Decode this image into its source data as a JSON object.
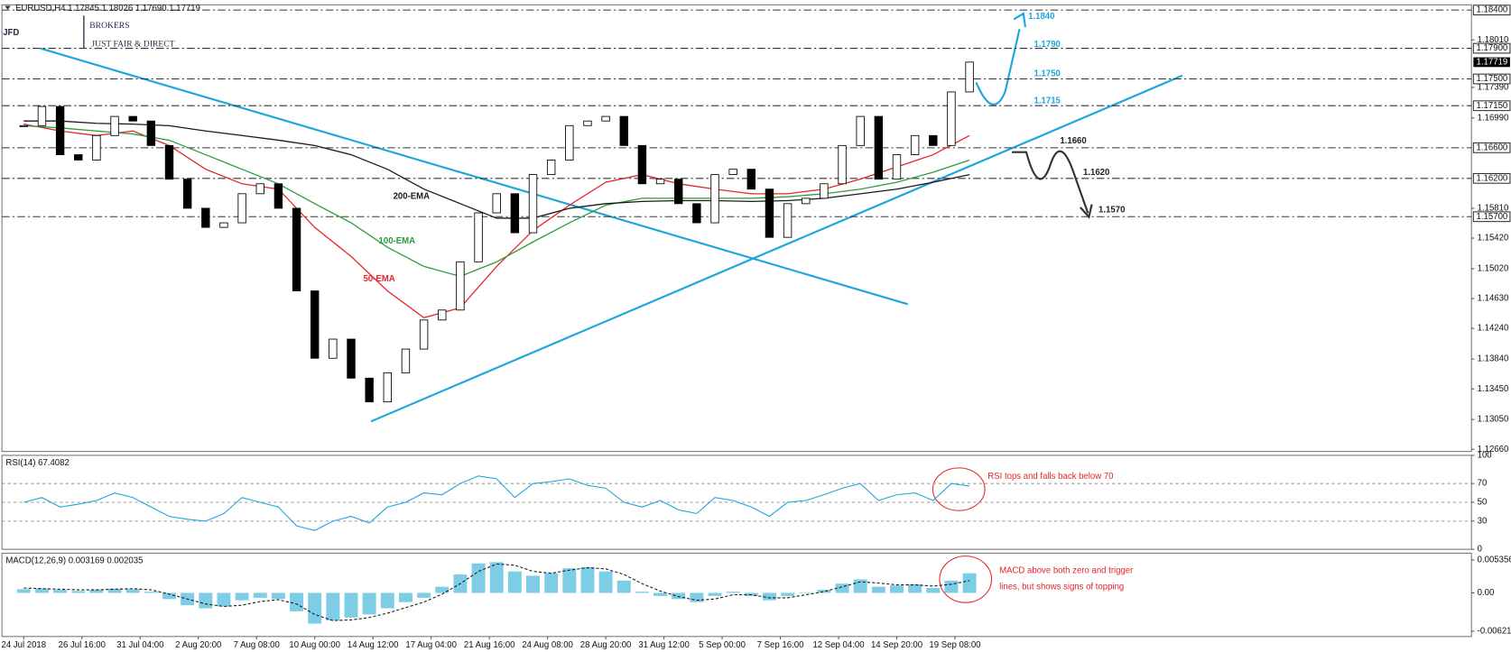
{
  "header": "EURUSD,H4 1.17845 1.18026 1.17690 1.17719",
  "logo": {
    "brand": "JFD",
    "name": "BROKERS",
    "tagline": "JUST FAIR & DIRECT"
  },
  "chart_data": [
    {
      "type": "candlestick",
      "color": "#000000",
      "x": [
        0,
        5,
        10,
        15,
        20,
        25,
        30,
        35,
        40,
        45,
        50,
        55,
        60,
        65,
        70,
        75,
        80,
        85,
        90,
        95,
        100,
        105,
        110,
        115,
        120,
        125,
        130,
        135,
        140,
        145,
        150,
        155,
        160,
        165,
        170,
        175,
        180,
        185,
        190,
        195,
        200,
        205,
        210,
        215,
        220,
        225,
        230,
        235,
        240,
        245,
        250,
        255,
        260
      ],
      "values": [
        1.1689,
        1.1714,
        1.1651,
        1.1644,
        1.1676,
        1.1701,
        1.1695,
        1.1663,
        1.1619,
        1.1581,
        1.1556,
        1.1562,
        1.16,
        1.1613,
        1.1581,
        1.1473,
        1.1385,
        1.141,
        1.1359,
        1.1328,
        1.1366,
        1.1397,
        1.1435,
        1.1448,
        1.1511,
        1.1575,
        1.16,
        1.1549,
        1.1625,
        1.1644,
        1.1689,
        1.1695,
        1.1701,
        1.1663,
        1.1613,
        1.1619,
        1.1587,
        1.1562,
        1.1625,
        1.1632,
        1.1606,
        1.1543,
        1.1587,
        1.1594,
        1.1613,
        1.1663,
        1.1701,
        1.1619,
        1.1651,
        1.1676,
        1.1663,
        1.1733,
        1.1772
      ],
      "series": [
        {
          "name": "50-EMA",
          "color": "#e3262b",
          "x": [
            0,
            10,
            20,
            30,
            40,
            50,
            60,
            70,
            80,
            90,
            100,
            110,
            120,
            130,
            140,
            150,
            160,
            170,
            180,
            190,
            200,
            210,
            220,
            230,
            240,
            250,
            260
          ],
          "values": [
            1.1691,
            1.1682,
            1.1676,
            1.1682,
            1.1663,
            1.1632,
            1.1613,
            1.1606,
            1.1556,
            1.1518,
            1.1473,
            1.1438,
            1.1451,
            1.1505,
            1.1552,
            1.1585,
            1.1615,
            1.1625,
            1.1613,
            1.1606,
            1.16,
            1.16,
            1.1606,
            1.1619,
            1.1635,
            1.1651,
            1.1676
          ]
        },
        {
          "name": "100-EMA",
          "color": "#2e9a3a",
          "x": [
            0,
            10,
            20,
            30,
            40,
            50,
            60,
            70,
            80,
            90,
            100,
            110,
            120,
            130,
            140,
            150,
            160,
            170,
            180,
            190,
            200,
            210,
            220,
            230,
            240,
            250,
            260
          ],
          "values": [
            1.1689,
            1.1686,
            1.1682,
            1.1678,
            1.167,
            1.1651,
            1.1632,
            1.1613,
            1.1587,
            1.1562,
            1.153,
            1.1505,
            1.1492,
            1.1511,
            1.1537,
            1.1562,
            1.1585,
            1.1594,
            1.1594,
            1.1594,
            1.1594,
            1.1596,
            1.16,
            1.1606,
            1.1615,
            1.1628,
            1.1644
          ]
        },
        {
          "name": "200-EMA",
          "color": "#1a1a1a",
          "x": [
            0,
            10,
            20,
            30,
            40,
            50,
            60,
            70,
            80,
            90,
            100,
            110,
            120,
            130,
            140,
            150,
            160,
            170,
            180,
            190,
            200,
            210,
            220,
            230,
            240,
            250,
            260
          ],
          "values": [
            1.1695,
            1.1695,
            1.1692,
            1.1691,
            1.1689,
            1.1682,
            1.1676,
            1.167,
            1.1663,
            1.1651,
            1.1632,
            1.1606,
            1.1587,
            1.1568,
            1.1568,
            1.1581,
            1.1587,
            1.159,
            1.1591,
            1.1591,
            1.159,
            1.1591,
            1.1594,
            1.16,
            1.1606,
            1.1615,
            1.1625
          ]
        }
      ],
      "xlim": [
        -6,
        398
      ],
      "ylim": [
        1.12632,
        1.18468
      ],
      "yticks": [
        {
          "value": 1.1801,
          "label": "1.18010"
        },
        {
          "value": 1.1739,
          "label": "1.17390"
        },
        {
          "value": 1.1699,
          "label": "1.16990"
        },
        {
          "value": 1.1581,
          "label": "1.15810"
        },
        {
          "value": 1.1542,
          "label": "1.15420"
        },
        {
          "value": 1.1502,
          "label": "1.15020"
        },
        {
          "value": 1.1463,
          "label": "1.14630"
        },
        {
          "value": 1.1424,
          "label": "1.14240"
        },
        {
          "value": 1.1384,
          "label": "1.13840"
        },
        {
          "value": 1.1345,
          "label": "1.13450"
        },
        {
          "value": 1.1305,
          "label": "1.13050"
        },
        {
          "value": 1.1266,
          "label": "1.12660"
        }
      ],
      "levels": [
        {
          "value": 1.184,
          "label": "1.18400",
          "text": "1.1840",
          "color": "#1ba6dc"
        },
        {
          "value": 1.179,
          "label": "1.17900",
          "text": "1.1790",
          "color": "#1ba6dc"
        },
        {
          "value": 1.175,
          "label": "1.17500",
          "text": "1.1750",
          "color": "#1ba6dc"
        },
        {
          "value": 1.1715,
          "label": "1.17150",
          "text": "1.1715",
          "color": "#1ba6dc"
        },
        {
          "value": 1.166,
          "label": "1.16600",
          "text": "1.1660",
          "color": "#222222"
        },
        {
          "value": 1.162,
          "label": "1.16200",
          "text": "1.1620",
          "color": "#222222"
        },
        {
          "value": 1.157,
          "label": "1.15700",
          "text": "1.1570",
          "color": "#222222"
        }
      ],
      "current": {
        "value": 1.17719,
        "label": "1.17719"
      }
    },
    {
      "type": "line",
      "title": "RSI(14) 67.4082",
      "color": "#1ba6dc",
      "x": [
        0,
        5,
        10,
        15,
        20,
        25,
        30,
        35,
        40,
        45,
        50,
        55,
        60,
        65,
        70,
        75,
        80,
        85,
        90,
        95,
        100,
        105,
        110,
        115,
        120,
        125,
        130,
        135,
        140,
        145,
        150,
        155,
        160,
        165,
        170,
        175,
        180,
        185,
        190,
        195,
        200,
        205,
        210,
        215,
        220,
        225,
        230,
        235,
        240,
        245,
        250,
        255,
        260
      ],
      "values": [
        50,
        55,
        45,
        48,
        52,
        60,
        55,
        45,
        35,
        32,
        30,
        38,
        55,
        50,
        45,
        25,
        20,
        30,
        35,
        28,
        45,
        50,
        60,
        58,
        70,
        78,
        75,
        55,
        70,
        72,
        75,
        68,
        65,
        50,
        45,
        52,
        42,
        38,
        55,
        52,
        45,
        35,
        50,
        52,
        58,
        65,
        70,
        52,
        58,
        60,
        52,
        70,
        67.4
      ],
      "xlim": [
        -6,
        398
      ],
      "ylim": [
        0,
        100
      ],
      "yticks": [
        100,
        70,
        50,
        30,
        0
      ],
      "levels": [
        70,
        50,
        30
      ],
      "annotation": "RSI tops and falls back below 70",
      "annotation_color": "#e3262b"
    },
    {
      "type": "macd",
      "title": "MACD(12,26,9) 0.003169 0.002035",
      "x": [
        0,
        5,
        10,
        15,
        20,
        25,
        30,
        35,
        40,
        45,
        50,
        55,
        60,
        65,
        70,
        75,
        80,
        85,
        90,
        95,
        100,
        105,
        110,
        115,
        120,
        125,
        130,
        135,
        140,
        145,
        150,
        155,
        160,
        165,
        170,
        175,
        180,
        185,
        190,
        195,
        200,
        205,
        210,
        215,
        220,
        225,
        230,
        235,
        240,
        245,
        250,
        255,
        260
      ],
      "series": [
        {
          "type": "bar",
          "color": "#5bc0de",
          "values": [
            0.0006,
            0.0007,
            0.0005,
            0.0003,
            0.0005,
            0.0007,
            0.0006,
            0.0002,
            -0.001,
            -0.002,
            -0.0025,
            -0.0022,
            -0.0012,
            -0.0008,
            -0.001,
            -0.003,
            -0.005,
            -0.0045,
            -0.004,
            -0.0035,
            -0.0025,
            -0.0015,
            -0.0008,
            0.001,
            0.003,
            0.0048,
            0.005,
            0.0035,
            0.0028,
            0.0032,
            0.004,
            0.0042,
            0.0035,
            0.002,
            0.0002,
            -0.0005,
            -0.001,
            -0.0015,
            -0.0005,
            0.0002,
            -0.0005,
            -0.0012,
            -0.0005,
            0.0001,
            0.0005,
            0.0015,
            0.0022,
            0.001,
            0.0012,
            0.0014,
            0.0008,
            0.002,
            0.0032
          ]
        },
        {
          "type": "line",
          "color": "#1a1a1a",
          "values": [
            0.0008,
            0.0007,
            0.0006,
            0.0005,
            0.0005,
            0.0006,
            0.0007,
            0.0005,
            -0.0002,
            -0.001,
            -0.0018,
            -0.0022,
            -0.002,
            -0.0014,
            -0.0011,
            -0.0018,
            -0.0035,
            -0.0045,
            -0.0044,
            -0.004,
            -0.0033,
            -0.0024,
            -0.0015,
            -0.0002,
            0.0015,
            0.0035,
            0.0047,
            0.0045,
            0.0035,
            0.0032,
            0.0037,
            0.0041,
            0.0039,
            0.003,
            0.0015,
            0.0003,
            -0.0006,
            -0.0012,
            -0.001,
            -0.0003,
            -0.0003,
            -0.0008,
            -0.0008,
            -0.0003,
            0.0002,
            0.001,
            0.0018,
            0.0016,
            0.0013,
            0.0013,
            0.0011,
            0.0014,
            0.002
          ]
        }
      ],
      "xlim": [
        -6,
        398
      ],
      "ylim": [
        -0.00709,
        0.006459
      ],
      "yticks": [
        0.005356,
        {
          "value": 0,
          "label": "0.00"
        },
        -0.006218
      ],
      "xticks": [
        {
          "value": 0,
          "label": "24 Jul 2018"
        },
        {
          "value": 16,
          "label": "26 Jul 16:00"
        },
        {
          "value": 32,
          "label": "31 Jul 04:00"
        },
        {
          "value": 48,
          "label": "2 Aug 20:00"
        },
        {
          "value": 64,
          "label": "7 Aug 08:00"
        },
        {
          "value": 80,
          "label": "10 Aug 00:00"
        },
        {
          "value": 96,
          "label": "14 Aug 12:00"
        },
        {
          "value": 112,
          "label": "17 Aug 04:00"
        },
        {
          "value": 128,
          "label": "21 Aug 16:00"
        },
        {
          "value": 144,
          "label": "24 Aug 08:00"
        },
        {
          "value": 160,
          "label": "28 Aug 20:00"
        },
        {
          "value": 176,
          "label": "31 Aug 12:00"
        },
        {
          "value": 192,
          "label": "5 Sep 00:00"
        },
        {
          "value": 208,
          "label": "7 Sep 16:00"
        },
        {
          "value": 224,
          "label": "12 Sep 04:00"
        },
        {
          "value": 240,
          "label": "14 Sep 20:00"
        },
        {
          "value": 256,
          "label": "19 Sep 08:00"
        }
      ],
      "annotation": [
        "MACD above both zero and trigger",
        "lines, but shows signs of topping"
      ],
      "annotation_color": "#e3262b"
    }
  ]
}
